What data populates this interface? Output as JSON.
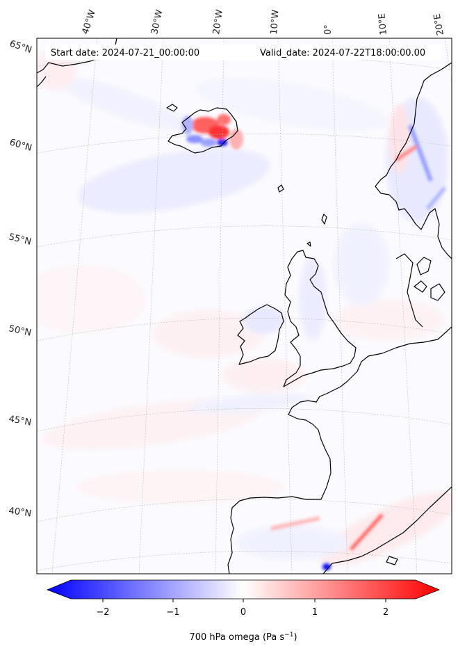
{
  "header": {
    "start_date": "Start date: 2024-07-21_00:00:00",
    "valid_date": "Valid_date: 2024-07-22T18:00:00.00"
  },
  "longitude_labels": [
    "40°W",
    "30°W",
    "20°W",
    "10°W",
    "0°",
    "10°E",
    "20°E"
  ],
  "latitude_labels": [
    "65°N",
    "60°N",
    "55°N",
    "50°N",
    "45°N",
    "40°N"
  ],
  "colorbar": {
    "tick_labels": [
      "−2",
      "−1",
      "0",
      "1",
      "2"
    ],
    "label": "700 hPa omega (Pa s",
    "label_sup": "−1",
    "label_end": ")",
    "min_color": "#0000ff",
    "mid_color": "#ffffff",
    "max_color": "#ff0000"
  }
}
